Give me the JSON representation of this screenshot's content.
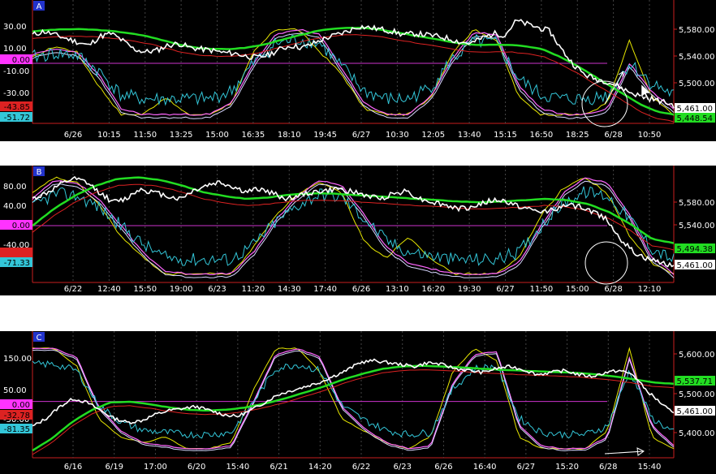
{
  "colors": {
    "white": "#ffffff",
    "cyan": "#33c6d8",
    "green": "#22dd22",
    "red": "#dd2222",
    "yellow": "#e6e600",
    "magenta": "#cc33cc",
    "pink": "#ff66ff",
    "axis_red": "#c81e1e",
    "grid": "#444444"
  },
  "chart_data": [
    {
      "id": "A",
      "type": "line",
      "label_badge": "A",
      "x_ticks": [
        "6/26",
        "10:15",
        "11:50",
        "13:25",
        "15:00",
        "16:35",
        "18:10",
        "19:45",
        "6/27",
        "10:30",
        "12:05",
        "13:40",
        "15:15",
        "16:50",
        "18:25",
        "6/28",
        "10:50"
      ],
      "left_ticks": [
        "30.00",
        "10.00",
        "0.00",
        "-10.00",
        "-30.00"
      ],
      "right_ticks": [
        "5,580.00",
        "5,540.00",
        "5,500.00"
      ],
      "left_badges": [
        {
          "text": "0.00",
          "color": "#ff33ff"
        },
        {
          "text": "-43.85",
          "color": "#dd2222"
        },
        {
          "text": "-51.72",
          "color": "#33c6d8"
        }
      ],
      "right_badges": [
        {
          "text": "5,461.00",
          "color": "#ffffff"
        },
        {
          "text": "5,448.54",
          "color": "#22dd22"
        }
      ],
      "price": [
        5560,
        5565,
        5560,
        5555,
        5550,
        5545,
        5558,
        5562,
        5552,
        5540,
        5536,
        5538,
        5545,
        5548,
        5542,
        5540,
        5538,
        5535,
        5534,
        5530,
        5528,
        5532,
        5540,
        5545,
        5542,
        5548,
        5555,
        5560,
        5565,
        5572,
        5570,
        5568,
        5565,
        5560,
        5562,
        5560,
        5558,
        5555,
        5550,
        5548,
        5556,
        5562,
        5560,
        5580,
        5575,
        5570,
        5565,
        5540,
        5520,
        5505,
        5498,
        5495,
        5488,
        5480,
        5474,
        5470,
        5466,
        5461
      ],
      "green": [
        5565,
        5567,
        5568,
        5568,
        5567,
        5565,
        5562,
        5558,
        5552,
        5546,
        5542,
        5540,
        5540,
        5542,
        5546,
        5552,
        5558,
        5564,
        5568,
        5570,
        5570,
        5568,
        5564,
        5560,
        5556,
        5552,
        5548,
        5546,
        5546,
        5546,
        5544,
        5540,
        5530,
        5518,
        5504,
        5490,
        5476,
        5462,
        5452,
        5448
      ],
      "oscillator_yellow": [
        10,
        30,
        20,
        -40,
        -90,
        -90,
        -60,
        -90,
        -90,
        -70,
        20,
        60,
        60,
        20,
        -20,
        -80,
        -90,
        -90,
        -60,
        20,
        60,
        40,
        -60,
        -90,
        -90,
        -90,
        -70,
        40,
        -60,
        -90
      ],
      "oscillator_pink": [
        15,
        25,
        20,
        -20,
        -80,
        -90,
        -90,
        -90,
        -90,
        -70,
        0,
        50,
        60,
        50,
        -10,
        -70,
        -90,
        -90,
        -60,
        10,
        55,
        50,
        -40,
        -80,
        -90,
        -90,
        -80,
        0,
        -50,
        -80
      ]
    },
    {
      "id": "B",
      "type": "line",
      "label_badge": "B",
      "x_ticks": [
        "6/22",
        "12:40",
        "15:50",
        "19:00",
        "6/23",
        "11:20",
        "14:30",
        "17:40",
        "6/26",
        "13:10",
        "16:20",
        "19:30",
        "6/27",
        "11:50",
        "15:00",
        "6/28",
        "12:10"
      ],
      "left_ticks": [
        "80.00",
        "40.00",
        "0.00",
        "-40.00"
      ],
      "right_ticks": [
        "5,580.00",
        "5,540.00"
      ],
      "left_badges": [
        {
          "text": "0.00",
          "color": "#ff33ff"
        },
        {
          "text": "",
          "color": "#dd2222"
        },
        {
          "text": "-71.33",
          "color": "#33c6d8"
        }
      ],
      "right_badges": [
        {
          "text": "5,494.38",
          "color": "#22dd22"
        },
        {
          "text": "5,461.00",
          "color": "#ffffff"
        }
      ],
      "price": [
        5560,
        5568,
        5580,
        5590,
        5585,
        5570,
        5555,
        5560,
        5575,
        5570,
        5565,
        5560,
        5572,
        5580,
        5585,
        5578,
        5570,
        5575,
        5568,
        5560,
        5565,
        5570,
        5572,
        5575,
        5570,
        5565,
        5560,
        5568,
        5572,
        5560,
        5555,
        5550,
        5545,
        5548,
        5556,
        5558,
        5552,
        5545,
        5540,
        5545,
        5550,
        5548,
        5540,
        5530,
        5500,
        5480,
        5470,
        5465,
        5461
      ],
      "green": [
        5520,
        5545,
        5565,
        5580,
        5590,
        5592,
        5588,
        5580,
        5570,
        5564,
        5560,
        5562,
        5566,
        5568,
        5568,
        5566,
        5564,
        5562,
        5560,
        5558,
        5556,
        5555,
        5556,
        5558,
        5560,
        5558,
        5552,
        5540,
        5522,
        5500,
        5494
      ],
      "oscillator_yellow": [
        60,
        90,
        80,
        40,
        -20,
        -60,
        -90,
        -90,
        -90,
        -90,
        -40,
        20,
        60,
        80,
        60,
        -30,
        -60,
        -20,
        -60,
        -90,
        -90,
        -90,
        -60,
        20,
        70,
        90,
        60,
        -20,
        -70,
        -90
      ],
      "oscillator_pink": [
        50,
        85,
        80,
        50,
        0,
        -50,
        -85,
        -90,
        -90,
        -90,
        -50,
        10,
        55,
        85,
        75,
        20,
        -40,
        -70,
        -80,
        -90,
        -90,
        -90,
        -70,
        0,
        60,
        90,
        80,
        20,
        -60,
        -90
      ]
    },
    {
      "id": "C",
      "type": "line",
      "label_badge": "C",
      "x_ticks": [
        "6/16",
        "6/19",
        "17:00",
        "6/20",
        "15:40",
        "6/21",
        "14:20",
        "6/22",
        "6/23",
        "6/26",
        "16:40",
        "6/27",
        "15:20",
        "6/28",
        "15:40"
      ],
      "left_ticks": [
        "150.00",
        "50.00",
        "0.00",
        "-50.00"
      ],
      "right_ticks": [
        "5,600.00",
        "5,500.00",
        "5,400.00"
      ],
      "left_badges": [
        {
          "text": "0.00",
          "color": "#ff33ff"
        },
        {
          "text": "-32.78",
          "color": "#dd2222"
        },
        {
          "text": "-81.35",
          "color": "#33c6d8"
        }
      ],
      "right_badges": [
        {
          "text": "5,537.71",
          "color": "#22dd22"
        },
        {
          "text": "5,461.00",
          "color": "#ffffff"
        }
      ],
      "price": [
        5430,
        5450,
        5480,
        5500,
        5490,
        5470,
        5450,
        5440,
        5445,
        5460,
        5470,
        5475,
        5480,
        5470,
        5460,
        5455,
        5470,
        5490,
        5510,
        5520,
        5530,
        5540,
        5555,
        5570,
        5590,
        5595,
        5590,
        5585,
        5580,
        5590,
        5585,
        5575,
        5570,
        5565,
        5575,
        5580,
        5572,
        5560,
        5565,
        5570,
        5560,
        5555,
        5565,
        5570,
        5560,
        5520,
        5490,
        5461
      ],
      "green": [
        5370,
        5400,
        5440,
        5470,
        5490,
        5492,
        5486,
        5478,
        5472,
        5470,
        5472,
        5478,
        5488,
        5500,
        5515,
        5530,
        5548,
        5562,
        5574,
        5580,
        5582,
        5580,
        5578,
        5575,
        5572,
        5570,
        5568,
        5566,
        5564,
        5560,
        5555,
        5548,
        5540,
        5537
      ],
      "oscillator_yellow": [
        180,
        180,
        120,
        -60,
        -120,
        -140,
        -120,
        -160,
        -160,
        -140,
        40,
        180,
        180,
        100,
        -60,
        -100,
        -140,
        -160,
        -120,
        100,
        180,
        140,
        -120,
        -160,
        -160,
        -160,
        -100,
        180,
        -120,
        -160
      ],
      "oscillator_pink": [
        180,
        180,
        150,
        -20,
        -100,
        -140,
        -150,
        -160,
        -160,
        -150,
        0,
        160,
        180,
        150,
        -20,
        -90,
        -140,
        -160,
        -150,
        60,
        160,
        170,
        -80,
        -150,
        -160,
        -160,
        -120,
        150,
        -80,
        -150
      ]
    }
  ]
}
